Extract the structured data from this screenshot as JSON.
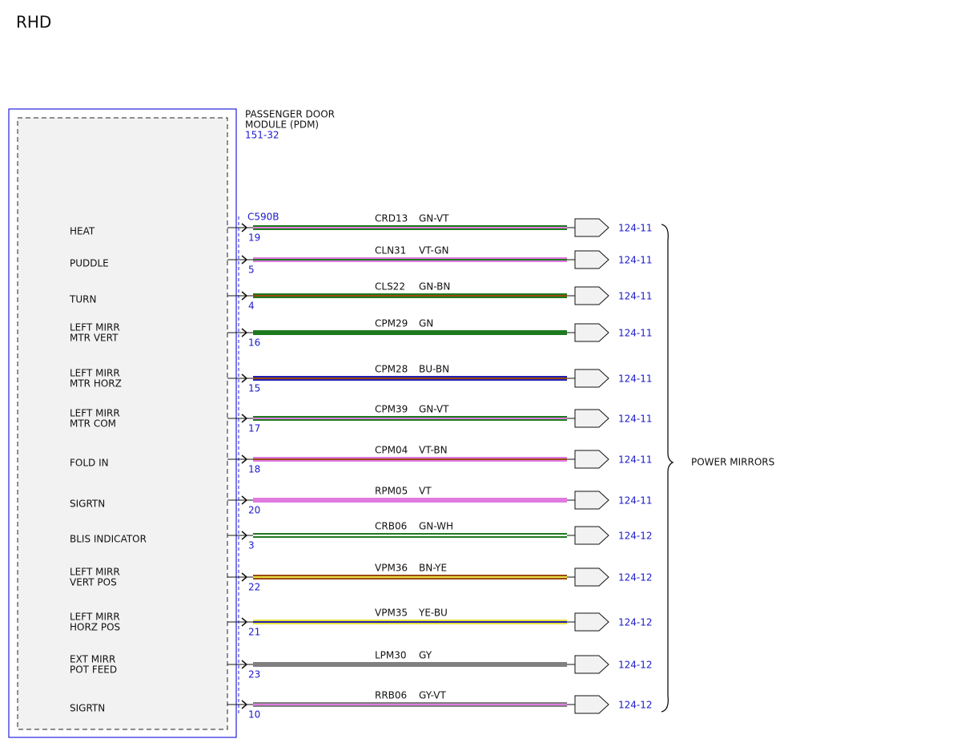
{
  "title": "RHD",
  "module": {
    "name": [
      "PASSENGER DOOR",
      "MODULE (PDM)"
    ],
    "ref": "151-32",
    "connector": "C590B"
  },
  "circuits": [
    {
      "label": [
        "HEAT"
      ],
      "pin": "19",
      "circuit": "CRD13",
      "color_code": "GN-VT",
      "ref": "124-11"
    },
    {
      "label": [
        "PUDDLE"
      ],
      "pin": "5",
      "circuit": "CLN31",
      "color_code": "VT-GN",
      "ref": "124-11"
    },
    {
      "label": [
        "TURN"
      ],
      "pin": "4",
      "circuit": "CLS22",
      "color_code": "GN-BN",
      "ref": "124-11"
    },
    {
      "label": [
        "LEFT MIRR",
        "MTR VERT"
      ],
      "pin": "16",
      "circuit": "CPM29",
      "color_code": "GN",
      "ref": "124-11"
    },
    {
      "label": [
        "LEFT MIRR",
        "MTR HORZ"
      ],
      "pin": "15",
      "circuit": "CPM28",
      "color_code": "BU-BN",
      "ref": "124-11"
    },
    {
      "label": [
        "LEFT MIRR",
        "MTR COM"
      ],
      "pin": "17",
      "circuit": "CPM39",
      "color_code": "GN-VT",
      "ref": "124-11"
    },
    {
      "label": [
        "FOLD IN"
      ],
      "pin": "18",
      "circuit": "CPM04",
      "color_code": "VT-BN",
      "ref": "124-11"
    },
    {
      "label": [
        "SIGRTN"
      ],
      "pin": "20",
      "circuit": "RPM05",
      "color_code": "VT",
      "ref": "124-11"
    },
    {
      "label": [
        "BLIS INDICATOR"
      ],
      "pin": "3",
      "circuit": "CRB06",
      "color_code": "GN-WH",
      "ref": "124-12"
    },
    {
      "label": [
        "LEFT MIRR",
        "VERT POS"
      ],
      "pin": "22",
      "circuit": "VPM36",
      "color_code": "BN-YE",
      "ref": "124-12"
    },
    {
      "label": [
        "LEFT MIRR",
        "HORZ POS"
      ],
      "pin": "21",
      "circuit": "VPM35",
      "color_code": "YE-BU",
      "ref": "124-12"
    },
    {
      "label": [
        "EXT MIRR",
        "POT FEED"
      ],
      "pin": "23",
      "circuit": "LPM30",
      "color_code": "GY",
      "ref": "124-12"
    },
    {
      "label": [
        "SIGRTN"
      ],
      "pin": "10",
      "circuit": "RRB06",
      "color_code": "GY-VT",
      "ref": "124-12"
    }
  ],
  "group_label": "POWER MIRRORS"
}
